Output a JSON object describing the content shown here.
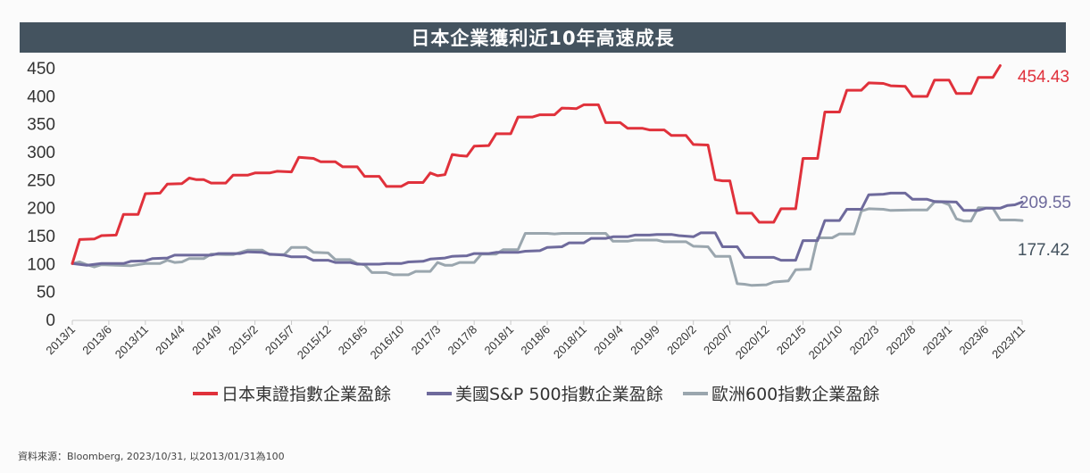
{
  "chart_data": {
    "type": "line",
    "title": "日本企業獲利近10年高速成長",
    "ylim": [
      0,
      450
    ],
    "yticks": [
      0,
      50,
      100,
      150,
      200,
      250,
      300,
      350,
      400,
      450
    ],
    "x_start": "2013/1",
    "x_end": "2023/11",
    "xtick_labels": [
      "2013/1",
      "2013/6",
      "2013/11",
      "2014/4",
      "2014/9",
      "2015/2",
      "2015/7",
      "2015/12",
      "2016/5",
      "2016/10",
      "2017/3",
      "2017/8",
      "2018/1",
      "2018/6",
      "2018/11",
      "2019/4",
      "2019/9",
      "2020/2",
      "2020/7",
      "2020/12",
      "2021/5",
      "2021/10",
      "2022/3",
      "2022/8",
      "2023/1",
      "2023/6",
      "2023/11"
    ],
    "grid": false,
    "legend_position": "bottom",
    "series": [
      {
        "name": "日本東證指數企業盈餘",
        "color": "#e0313b",
        "end_label": "454.43",
        "points": [
          [
            "2013/1",
            100
          ],
          [
            "2013/2",
            143
          ],
          [
            "2013/4",
            144
          ],
          [
            "2013/5",
            150
          ],
          [
            "2013/7",
            151
          ],
          [
            "2013/8",
            188
          ],
          [
            "2013/10",
            188
          ],
          [
            "2013/11",
            225
          ],
          [
            "2014/1",
            226
          ],
          [
            "2014/2",
            242
          ],
          [
            "2014/4",
            243
          ],
          [
            "2014/5",
            253
          ],
          [
            "2014/6",
            250
          ],
          [
            "2014/7",
            250
          ],
          [
            "2014/8",
            244
          ],
          [
            "2014/10",
            244
          ],
          [
            "2014/11",
            258
          ],
          [
            "2015/1",
            258
          ],
          [
            "2015/2",
            262
          ],
          [
            "2015/4",
            262
          ],
          [
            "2015/5",
            265
          ],
          [
            "2015/7",
            264
          ],
          [
            "2015/8",
            290
          ],
          [
            "2015/9",
            289
          ],
          [
            "2015/10",
            288
          ],
          [
            "2015/11",
            282
          ],
          [
            "2016/1",
            282
          ],
          [
            "2016/2",
            273
          ],
          [
            "2016/4",
            273
          ],
          [
            "2016/5",
            256
          ],
          [
            "2016/7",
            256
          ],
          [
            "2016/8",
            238
          ],
          [
            "2016/10",
            238
          ],
          [
            "2016/11",
            245
          ],
          [
            "2017/1",
            245
          ],
          [
            "2017/2",
            262
          ],
          [
            "2017/3",
            257
          ],
          [
            "2017/4",
            259
          ],
          [
            "2017/5",
            295
          ],
          [
            "2017/6",
            293
          ],
          [
            "2017/7",
            292
          ],
          [
            "2017/8",
            310
          ],
          [
            "2017/10",
            311
          ],
          [
            "2017/11",
            332
          ],
          [
            "2018/1",
            332
          ],
          [
            "2018/2",
            362
          ],
          [
            "2018/4",
            362
          ],
          [
            "2018/5",
            366
          ],
          [
            "2018/7",
            366
          ],
          [
            "2018/8",
            378
          ],
          [
            "2018/10",
            377
          ],
          [
            "2018/11",
            384
          ],
          [
            "2019/1",
            384
          ],
          [
            "2019/2",
            352
          ],
          [
            "2019/4",
            352
          ],
          [
            "2019/5",
            342
          ],
          [
            "2019/7",
            342
          ],
          [
            "2019/8",
            339
          ],
          [
            "2019/10",
            339
          ],
          [
            "2019/11",
            329
          ],
          [
            "2020/1",
            329
          ],
          [
            "2020/2",
            313
          ],
          [
            "2020/4",
            312
          ],
          [
            "2020/5",
            250
          ],
          [
            "2020/6",
            248
          ],
          [
            "2020/7",
            248
          ],
          [
            "2020/8",
            190
          ],
          [
            "2020/10",
            190
          ],
          [
            "2020/11",
            174
          ],
          [
            "2021/1",
            174
          ],
          [
            "2021/2",
            198
          ],
          [
            "2021/4",
            198
          ],
          [
            "2021/5",
            288
          ],
          [
            "2021/7",
            288
          ],
          [
            "2021/8",
            371
          ],
          [
            "2021/10",
            371
          ],
          [
            "2021/11",
            410
          ],
          [
            "2022/1",
            410
          ],
          [
            "2022/2",
            423
          ],
          [
            "2022/4",
            422
          ],
          [
            "2022/5",
            418
          ],
          [
            "2022/7",
            417
          ],
          [
            "2022/8",
            399
          ],
          [
            "2022/10",
            399
          ],
          [
            "2022/11",
            428
          ],
          [
            "2023/1",
            428
          ],
          [
            "2023/2",
            404
          ],
          [
            "2023/4",
            404
          ],
          [
            "2023/5",
            433
          ],
          [
            "2023/7",
            433
          ],
          [
            "2023/8",
            454
          ]
        ]
      },
      {
        "name": "美國S&P 500指數企業盈餘",
        "color": "#6e6a9c",
        "end_label": "209.55",
        "points": [
          [
            "2013/1",
            100
          ],
          [
            "2013/3",
            97
          ],
          [
            "2013/5",
            100
          ],
          [
            "2013/8",
            100
          ],
          [
            "2013/9",
            104
          ],
          [
            "2013/11",
            105
          ],
          [
            "2013/12",
            109
          ],
          [
            "2014/2",
            110
          ],
          [
            "2014/3",
            115
          ],
          [
            "2014/8",
            115
          ],
          [
            "2014/9",
            118
          ],
          [
            "2014/12",
            118
          ],
          [
            "2015/1",
            121
          ],
          [
            "2015/3",
            120
          ],
          [
            "2015/4",
            117
          ],
          [
            "2015/6",
            115
          ],
          [
            "2015/7",
            112
          ],
          [
            "2015/9",
            112
          ],
          [
            "2015/10",
            106
          ],
          [
            "2015/12",
            106
          ],
          [
            "2016/1",
            102
          ],
          [
            "2016/3",
            102
          ],
          [
            "2016/4",
            99
          ],
          [
            "2016/7",
            99
          ],
          [
            "2016/8",
            100
          ],
          [
            "2016/10",
            100
          ],
          [
            "2016/11",
            103
          ],
          [
            "2017/1",
            104
          ],
          [
            "2017/2",
            108
          ],
          [
            "2017/4",
            110
          ],
          [
            "2017/5",
            113
          ],
          [
            "2017/7",
            114
          ],
          [
            "2017/8",
            118
          ],
          [
            "2017/10",
            118
          ],
          [
            "2017/11",
            120
          ],
          [
            "2018/2",
            120
          ],
          [
            "2018/3",
            122
          ],
          [
            "2018/5",
            123
          ],
          [
            "2018/6",
            129
          ],
          [
            "2018/8",
            130
          ],
          [
            "2018/9",
            137
          ],
          [
            "2018/11",
            137
          ],
          [
            "2018/12",
            145
          ],
          [
            "2019/2",
            145
          ],
          [
            "2019/3",
            148
          ],
          [
            "2019/5",
            148
          ],
          [
            "2019/6",
            151
          ],
          [
            "2019/8",
            151
          ],
          [
            "2019/9",
            152
          ],
          [
            "2019/11",
            152
          ],
          [
            "2019/12",
            150
          ],
          [
            "2020/2",
            148
          ],
          [
            "2020/3",
            155
          ],
          [
            "2020/5",
            155
          ],
          [
            "2020/6",
            130
          ],
          [
            "2020/8",
            130
          ],
          [
            "2020/9",
            111
          ],
          [
            "2021/1",
            111
          ],
          [
            "2021/2",
            106
          ],
          [
            "2021/4",
            106
          ],
          [
            "2021/5",
            141
          ],
          [
            "2021/7",
            141
          ],
          [
            "2021/8",
            177
          ],
          [
            "2021/10",
            177
          ],
          [
            "2021/11",
            197
          ],
          [
            "2022/1",
            197
          ],
          [
            "2022/2",
            223
          ],
          [
            "2022/4",
            224
          ],
          [
            "2022/5",
            226
          ],
          [
            "2022/7",
            226
          ],
          [
            "2022/8",
            215
          ],
          [
            "2022/10",
            215
          ],
          [
            "2022/11",
            211
          ],
          [
            "2023/2",
            210
          ],
          [
            "2023/3",
            195
          ],
          [
            "2023/5",
            195
          ],
          [
            "2023/6",
            199
          ],
          [
            "2023/8",
            199
          ],
          [
            "2023/9",
            204
          ],
          [
            "2023/10",
            205
          ],
          [
            "2023/11",
            210
          ]
        ]
      },
      {
        "name": "歐洲600指數企業盈餘",
        "color": "#9aa6ae",
        "end_label": "177.42",
        "points": [
          [
            "2013/1",
            100
          ],
          [
            "2013/2",
            103
          ],
          [
            "2013/3",
            98
          ],
          [
            "2013/4",
            94
          ],
          [
            "2013/5",
            98
          ],
          [
            "2013/9",
            96
          ],
          [
            "2013/11",
            100
          ],
          [
            "2014/1",
            100
          ],
          [
            "2014/2",
            106
          ],
          [
            "2014/3",
            102
          ],
          [
            "2014/4",
            103
          ],
          [
            "2014/5",
            109
          ],
          [
            "2014/7",
            109
          ],
          [
            "2014/8",
            117
          ],
          [
            "2014/10",
            116
          ],
          [
            "2014/11",
            116
          ],
          [
            "2015/1",
            124
          ],
          [
            "2015/3",
            124
          ],
          [
            "2015/4",
            116
          ],
          [
            "2015/6",
            116
          ],
          [
            "2015/7",
            129
          ],
          [
            "2015/9",
            129
          ],
          [
            "2015/10",
            120
          ],
          [
            "2015/12",
            119
          ],
          [
            "2016/1",
            107
          ],
          [
            "2016/3",
            107
          ],
          [
            "2016/4",
            100
          ],
          [
            "2016/5",
            98
          ],
          [
            "2016/6",
            84
          ],
          [
            "2016/8",
            84
          ],
          [
            "2016/9",
            80
          ],
          [
            "2016/11",
            80
          ],
          [
            "2016/12",
            86
          ],
          [
            "2017/2",
            86
          ],
          [
            "2017/3",
            102
          ],
          [
            "2017/4",
            97
          ],
          [
            "2017/5",
            97
          ],
          [
            "2017/6",
            102
          ],
          [
            "2017/8",
            102
          ],
          [
            "2017/9",
            117
          ],
          [
            "2017/11",
            117
          ],
          [
            "2017/12",
            125
          ],
          [
            "2018/2",
            125
          ],
          [
            "2018/3",
            154
          ],
          [
            "2018/6",
            154
          ],
          [
            "2018/7",
            153
          ],
          [
            "2018/8",
            154
          ],
          [
            "2019/2",
            154
          ],
          [
            "2019/3",
            140
          ],
          [
            "2019/5",
            140
          ],
          [
            "2019/6",
            142
          ],
          [
            "2019/9",
            142
          ],
          [
            "2019/10",
            139
          ],
          [
            "2020/1",
            139
          ],
          [
            "2020/2",
            131
          ],
          [
            "2020/4",
            130
          ],
          [
            "2020/5",
            113
          ],
          [
            "2020/7",
            113
          ],
          [
            "2020/8",
            64
          ],
          [
            "2020/9",
            63
          ],
          [
            "2020/10",
            61
          ],
          [
            "2020/12",
            62
          ],
          [
            "2021/1",
            67
          ],
          [
            "2021/3",
            69
          ],
          [
            "2021/4",
            89
          ],
          [
            "2021/6",
            90
          ],
          [
            "2021/7",
            146
          ],
          [
            "2021/9",
            146
          ],
          [
            "2021/10",
            153
          ],
          [
            "2021/12",
            153
          ],
          [
            "2022/1",
            194
          ],
          [
            "2022/2",
            198
          ],
          [
            "2022/4",
            197
          ],
          [
            "2022/5",
            195
          ],
          [
            "2022/8",
            196
          ],
          [
            "2022/10",
            196
          ],
          [
            "2022/11",
            210
          ],
          [
            "2022/12",
            210
          ],
          [
            "2023/1",
            205
          ],
          [
            "2023/2",
            180
          ],
          [
            "2023/3",
            176
          ],
          [
            "2023/4",
            176
          ],
          [
            "2023/5",
            200
          ],
          [
            "2023/7",
            199
          ],
          [
            "2023/8",
            178
          ],
          [
            "2023/10",
            178
          ],
          [
            "2023/11",
            177
          ]
        ]
      }
    ]
  },
  "source_note": "資料來源：Bloomberg, 2023/10/31, 以2013/01/31為100"
}
